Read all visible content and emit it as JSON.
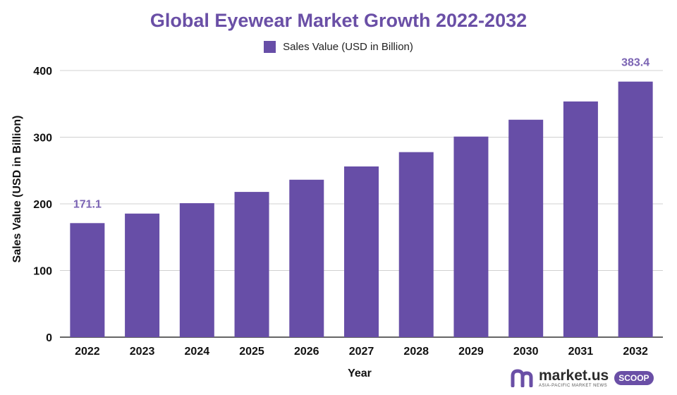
{
  "chart_data": {
    "type": "bar",
    "title": "Global Eyewear Market Growth 2022-2032",
    "xlabel": "Year",
    "ylabel": "Sales Value (USD in Billion)",
    "categories": [
      "2022",
      "2023",
      "2024",
      "2025",
      "2026",
      "2027",
      "2028",
      "2029",
      "2030",
      "2031",
      "2032"
    ],
    "series": [
      {
        "name": "Sales Value (USD in Billion)",
        "values": [
          171.1,
          185.4,
          201.0,
          217.9,
          236.2,
          256.1,
          277.6,
          300.9,
          326.2,
          353.6,
          383.4
        ],
        "color": "#674ea7"
      }
    ],
    "data_labels": [
      {
        "category": "2022",
        "text": "171.1"
      },
      {
        "category": "2032",
        "text": "383.4"
      }
    ],
    "ylim": [
      0,
      400
    ],
    "yticks": [
      0,
      100,
      200,
      300,
      400
    ],
    "grid": true,
    "legend_position": "top-center"
  },
  "branding": {
    "logo_name": "market.us",
    "logo_tagline": "ASIA-PACIFIC MARKET NEWS",
    "logo_badge": "SCOOP",
    "logo_color": "#6a4fa6"
  }
}
